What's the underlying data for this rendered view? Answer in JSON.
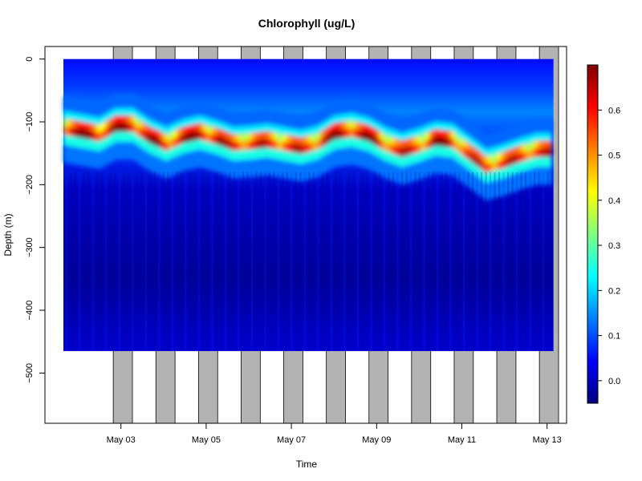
{
  "chart_data": {
    "type": "heatmap",
    "title": "Chlorophyll (ug/L)",
    "xlabel": "Time",
    "ylabel": "Depth (m)",
    "x_ticks": [
      "May 03",
      "May 05",
      "May 07",
      "May 09",
      "May 11",
      "May 13"
    ],
    "y_ticks": [
      "0",
      "−100",
      "−200",
      "−300",
      "−400",
      "−500"
    ],
    "y_tick_values": [
      0,
      -100,
      -200,
      -300,
      -400,
      -500
    ],
    "ylim": [
      -580,
      20
    ],
    "xlim_days": [
      "May 01",
      "May 13"
    ],
    "night_shading": true,
    "night_shading_color": "#b3b3b3",
    "colorbar": {
      "ticks": [
        "0.0",
        "0.1",
        "0.2",
        "0.3",
        "0.4",
        "0.5",
        "0.6"
      ],
      "tick_values": [
        0.0,
        0.1,
        0.2,
        0.3,
        0.4,
        0.5,
        0.6
      ],
      "range": [
        -0.05,
        0.7
      ],
      "colormap": "jet"
    },
    "chlorophyll_max_depth_m": [
      -105,
      -110,
      -115,
      -100,
      -100,
      -118,
      -130,
      -118,
      -112,
      -120,
      -130,
      -128,
      -125,
      -130,
      -135,
      -128,
      -112,
      -108,
      -115,
      -130,
      -140,
      -132,
      -122,
      -125,
      -145,
      -165,
      -158,
      -148,
      -140
    ],
    "profile_max_depth_m": -465,
    "surface_depth_m": 0
  }
}
